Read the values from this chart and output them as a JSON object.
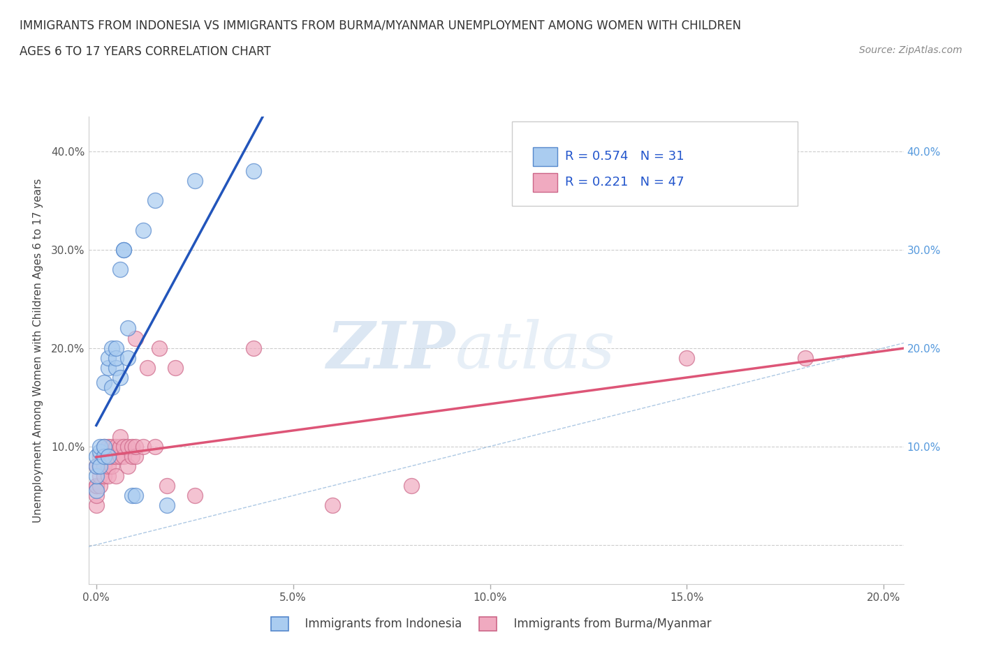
{
  "title_line1": "IMMIGRANTS FROM INDONESIA VS IMMIGRANTS FROM BURMA/MYANMAR UNEMPLOYMENT AMONG WOMEN WITH CHILDREN",
  "title_line2": "AGES 6 TO 17 YEARS CORRELATION CHART",
  "source": "Source: ZipAtlas.com",
  "ylabel": "Unemployment Among Women with Children Ages 6 to 17 years",
  "xlim": [
    -0.002,
    0.205
  ],
  "ylim": [
    -0.04,
    0.435
  ],
  "xticks": [
    0.0,
    0.05,
    0.1,
    0.15,
    0.2
  ],
  "yticks": [
    0.0,
    0.1,
    0.2,
    0.3,
    0.4
  ],
  "xtick_labels": [
    "0.0%",
    "5.0%",
    "10.0%",
    "15.0%",
    "20.0%"
  ],
  "ytick_labels_left": [
    "",
    "10.0%",
    "20.0%",
    "30.0%",
    "40.0%"
  ],
  "ytick_labels_right": [
    "",
    "10.0%",
    "20.0%",
    "30.0%",
    "40.0%"
  ],
  "indonesia_color": "#aaccf0",
  "burma_color": "#f0aac0",
  "indonesia_edge": "#5588cc",
  "burma_edge": "#cc6688",
  "trendline_indonesia_color": "#2255bb",
  "trendline_burma_color": "#dd5577",
  "diagonal_color": "#99bbdd",
  "R_indonesia": 0.574,
  "N_indonesia": 31,
  "R_burma": 0.221,
  "N_burma": 47,
  "legend_label_indonesia": "Immigrants from Indonesia",
  "legend_label_burma": "Immigrants from Burma/Myanmar",
  "watermark_zip": "ZIP",
  "watermark_atlas": "atlas",
  "indonesia_x": [
    0.0,
    0.0,
    0.0,
    0.0,
    0.001,
    0.001,
    0.001,
    0.002,
    0.002,
    0.002,
    0.003,
    0.003,
    0.003,
    0.004,
    0.004,
    0.005,
    0.005,
    0.005,
    0.006,
    0.006,
    0.007,
    0.007,
    0.008,
    0.008,
    0.009,
    0.01,
    0.012,
    0.015,
    0.018,
    0.025,
    0.04
  ],
  "indonesia_y": [
    0.055,
    0.07,
    0.08,
    0.09,
    0.08,
    0.095,
    0.1,
    0.09,
    0.1,
    0.165,
    0.09,
    0.18,
    0.19,
    0.16,
    0.2,
    0.18,
    0.19,
    0.2,
    0.17,
    0.28,
    0.3,
    0.3,
    0.19,
    0.22,
    0.05,
    0.05,
    0.32,
    0.35,
    0.04,
    0.37,
    0.38
  ],
  "burma_x": [
    0.0,
    0.0,
    0.0,
    0.0,
    0.0,
    0.001,
    0.001,
    0.001,
    0.001,
    0.002,
    0.002,
    0.002,
    0.002,
    0.003,
    0.003,
    0.003,
    0.003,
    0.004,
    0.004,
    0.004,
    0.005,
    0.005,
    0.005,
    0.006,
    0.006,
    0.006,
    0.007,
    0.007,
    0.008,
    0.008,
    0.009,
    0.009,
    0.01,
    0.01,
    0.01,
    0.012,
    0.013,
    0.015,
    0.016,
    0.018,
    0.02,
    0.025,
    0.04,
    0.06,
    0.08,
    0.15,
    0.18
  ],
  "burma_y": [
    0.04,
    0.05,
    0.06,
    0.06,
    0.08,
    0.06,
    0.07,
    0.08,
    0.09,
    0.07,
    0.08,
    0.09,
    0.1,
    0.07,
    0.08,
    0.09,
    0.1,
    0.08,
    0.09,
    0.1,
    0.07,
    0.09,
    0.1,
    0.09,
    0.1,
    0.11,
    0.09,
    0.1,
    0.08,
    0.1,
    0.09,
    0.1,
    0.09,
    0.1,
    0.21,
    0.1,
    0.18,
    0.1,
    0.2,
    0.06,
    0.18,
    0.05,
    0.2,
    0.04,
    0.06,
    0.19,
    0.19
  ]
}
